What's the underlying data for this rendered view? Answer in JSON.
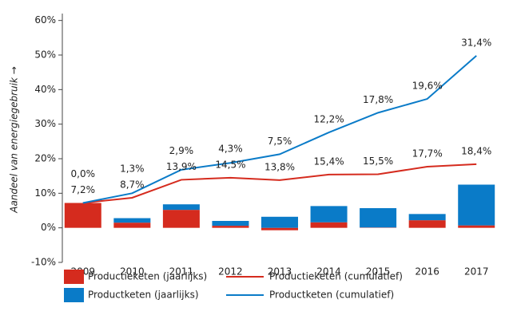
{
  "chart_data": {
    "type": "bar",
    "y_label": "Aandeel van energiegebruik →",
    "categories": [
      "2009",
      "2010",
      "2011",
      "2012",
      "2013",
      "2014",
      "2015",
      "2016",
      "2017"
    ],
    "series": [
      {
        "name": "Productieketen (jaarlijks)",
        "type": "bar",
        "color": "#d52b1e",
        "values": [
          7.2,
          1.5,
          5.2,
          0.6,
          -0.7,
          1.6,
          0.1,
          2.2,
          0.7
        ]
      },
      {
        "name": "Productketen (jaarlijks)",
        "type": "bar",
        "color": "#0a7bc8",
        "values": [
          0,
          1.3,
          1.6,
          1.4,
          3.2,
          4.7,
          5.6,
          1.8,
          11.8
        ]
      },
      {
        "name": "Productieketen (cumulatief)",
        "type": "line",
        "color": "#d52b1e",
        "values": [
          7.2,
          8.7,
          13.9,
          14.5,
          13.8,
          15.4,
          15.5,
          17.7,
          18.4
        ],
        "value_labels": [
          "7,2%",
          "8,7%",
          "13,9%",
          "14,5%",
          "13,8%",
          "15,4%",
          "15,5%",
          "17,7%",
          "18,4%"
        ]
      },
      {
        "name": "Productketen (cumulatief)",
        "type": "line",
        "color": "#0a7bc8",
        "values": [
          0.0,
          1.3,
          2.9,
          4.3,
          7.5,
          12.2,
          17.8,
          19.6,
          31.4
        ],
        "value_labels": [
          "0,0%",
          "1,3%",
          "2,9%",
          "4,3%",
          "7,5%",
          "12,2%",
          "17,8%",
          "19,6%",
          "31,4%"
        ]
      }
    ],
    "ylim": [
      -10,
      62
    ],
    "yticks": [
      {
        "value": -10,
        "label": "-10%"
      },
      {
        "value": 0,
        "label": "0%"
      },
      {
        "value": 10,
        "label": "10%"
      },
      {
        "value": 20,
        "label": "20%"
      },
      {
        "value": 30,
        "label": "30%"
      },
      {
        "value": 40,
        "label": "40%"
      },
      {
        "value": 50,
        "label": "50%"
      },
      {
        "value": 60,
        "label": "60%"
      }
    ],
    "grid": false,
    "legend": "bottom"
  }
}
